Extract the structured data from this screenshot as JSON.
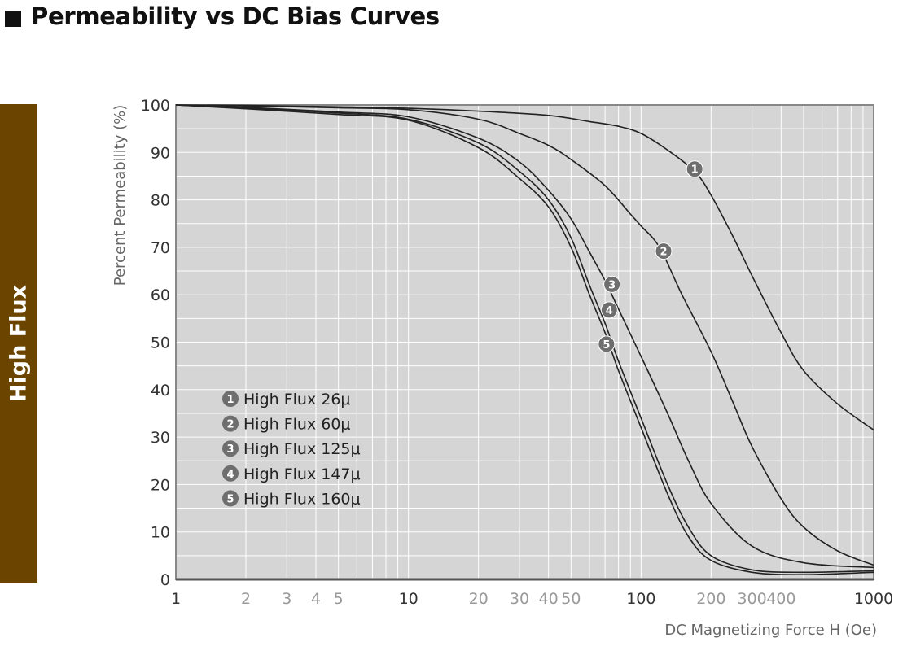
{
  "page": {
    "title": "Permeability vs DC Bias Curves",
    "side_tab": "High Flux"
  },
  "chart_data": {
    "type": "line",
    "title": "Permeability vs DC Bias Curves",
    "xlabel": "DC Magnetizing Force H (Oe)",
    "ylabel": "Percent Permeability (%)",
    "xscale": "log",
    "xlim": [
      1,
      1000
    ],
    "ylim": [
      0,
      100
    ],
    "grid": true,
    "legend_position": "bottom-left",
    "x_ticks": [
      {
        "v": 1,
        "label": "1",
        "major": true
      },
      {
        "v": 2,
        "label": "2",
        "major": false
      },
      {
        "v": 3,
        "label": "3",
        "major": false
      },
      {
        "v": 4,
        "label": "4",
        "major": false
      },
      {
        "v": 5,
        "label": "5",
        "major": false
      },
      {
        "v": 10,
        "label": "10",
        "major": true
      },
      {
        "v": 20,
        "label": "20",
        "major": false
      },
      {
        "v": 30,
        "label": "30",
        "major": false
      },
      {
        "v": 40,
        "label": "40",
        "major": false
      },
      {
        "v": 50,
        "label": "50",
        "major": false
      },
      {
        "v": 100,
        "label": "100",
        "major": true
      },
      {
        "v": 200,
        "label": "200",
        "major": false
      },
      {
        "v": 300,
        "label": "300",
        "major": false
      },
      {
        "v": 400,
        "label": "400",
        "major": false
      },
      {
        "v": 1000,
        "label": "1000",
        "major": true
      }
    ],
    "y_ticks": [
      0,
      10,
      20,
      30,
      40,
      50,
      60,
      70,
      80,
      90,
      100
    ],
    "colors": {
      "plot_bg": "#d5d5d5",
      "grid": "#ffffff",
      "frame": "#888888",
      "line": "#222222",
      "marker": "#6e6e6e",
      "tick_major": "#333333",
      "tick_minor": "#999999"
    },
    "series": [
      {
        "marker": "1",
        "name": "High Flux 26μ",
        "marker_x": 170,
        "marker_y": 86.5,
        "points": [
          [
            1,
            100
          ],
          [
            2,
            99.9
          ],
          [
            5,
            99.6
          ],
          [
            10,
            99.3
          ],
          [
            20,
            98.7
          ],
          [
            40,
            97.8
          ],
          [
            60,
            96.5
          ],
          [
            80,
            95.5
          ],
          [
            100,
            94
          ],
          [
            130,
            90.5
          ],
          [
            170,
            86
          ],
          [
            200,
            81
          ],
          [
            250,
            72
          ],
          [
            300,
            64
          ],
          [
            400,
            52
          ],
          [
            500,
            44
          ],
          [
            700,
            37
          ],
          [
            1000,
            31.5
          ]
        ]
      },
      {
        "marker": "2",
        "name": "High Flux 60μ",
        "marker_x": 125,
        "marker_y": 69.2,
        "points": [
          [
            1,
            100
          ],
          [
            2,
            99.8
          ],
          [
            5,
            99.4
          ],
          [
            10,
            99
          ],
          [
            20,
            97
          ],
          [
            30,
            94
          ],
          [
            40,
            91.5
          ],
          [
            50,
            88.5
          ],
          [
            70,
            83
          ],
          [
            90,
            77
          ],
          [
            100,
            74.5
          ],
          [
            120,
            70
          ],
          [
            150,
            60
          ],
          [
            200,
            48
          ],
          [
            250,
            37
          ],
          [
            300,
            28
          ],
          [
            400,
            17
          ],
          [
            500,
            11
          ],
          [
            700,
            6
          ],
          [
            1000,
            3
          ]
        ]
      },
      {
        "marker": "3",
        "name": "High Flux 125μ",
        "marker_x": 75,
        "marker_y": 62.2,
        "points": [
          [
            1,
            100
          ],
          [
            2,
            99.5
          ],
          [
            5,
            98.5
          ],
          [
            10,
            97.5
          ],
          [
            20,
            93
          ],
          [
            30,
            88
          ],
          [
            40,
            82
          ],
          [
            50,
            76
          ],
          [
            60,
            69
          ],
          [
            70,
            63
          ],
          [
            80,
            57
          ],
          [
            100,
            47
          ],
          [
            130,
            35
          ],
          [
            160,
            25
          ],
          [
            200,
            16
          ],
          [
            300,
            7
          ],
          [
            500,
            3.5
          ],
          [
            1000,
            2.5
          ]
        ]
      },
      {
        "marker": "4",
        "name": "High Flux 147μ",
        "marker_x": 73,
        "marker_y": 56.8,
        "points": [
          [
            1,
            100
          ],
          [
            2,
            99.3
          ],
          [
            5,
            98.3
          ],
          [
            10,
            97
          ],
          [
            20,
            92
          ],
          [
            30,
            86
          ],
          [
            40,
            80
          ],
          [
            50,
            72
          ],
          [
            60,
            62
          ],
          [
            70,
            54
          ],
          [
            80,
            46
          ],
          [
            100,
            34
          ],
          [
            130,
            20
          ],
          [
            160,
            11
          ],
          [
            200,
            5
          ],
          [
            300,
            2
          ],
          [
            500,
            1.5
          ],
          [
            1000,
            1.8
          ]
        ]
      },
      {
        "marker": "5",
        "name": "High Flux 160μ",
        "marker_x": 71,
        "marker_y": 49.6,
        "points": [
          [
            1,
            100
          ],
          [
            2,
            99.2
          ],
          [
            5,
            98
          ],
          [
            10,
            96.8
          ],
          [
            20,
            91
          ],
          [
            30,
            84.5
          ],
          [
            40,
            78.5
          ],
          [
            50,
            70
          ],
          [
            60,
            60
          ],
          [
            70,
            52
          ],
          [
            80,
            44
          ],
          [
            100,
            32
          ],
          [
            130,
            18
          ],
          [
            160,
            9
          ],
          [
            200,
            4
          ],
          [
            300,
            1.5
          ],
          [
            500,
            1
          ],
          [
            1000,
            1.5
          ]
        ]
      }
    ]
  }
}
